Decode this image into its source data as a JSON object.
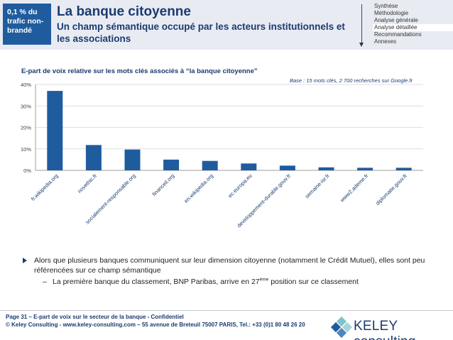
{
  "header": {
    "badge": "0,1 % du trafic non-brandé",
    "title": "La banque citoyenne",
    "subtitle": "Un champ sémantique occupé par les acteurs institutionnels et les associations"
  },
  "nav": {
    "items": [
      "Synthèse",
      "Méthodologie",
      "Analyse générale",
      "Analyse détaillée",
      "Recommandations",
      "Annexes"
    ],
    "active_index": 3
  },
  "chart_data": {
    "type": "bar",
    "title": "E-part de voix relative sur les mots clés associés à “la banque citoyenne”",
    "note": "Base : 15 mots clés, 2 700 recherches sur Google.fr",
    "categories": [
      "fr.wikipedia.org",
      "novethic.fr",
      "socialement-responsable.org",
      "financeil.org",
      "en.wikipedia.org",
      "ec.europa.eu",
      "developpement-durable.gouv.fr",
      "semaine-isr.fr",
      "www2.ademe.fr",
      "diplomatie.gouv.fr"
    ],
    "values": [
      37,
      11.8,
      9.7,
      5,
      4.4,
      3.2,
      2.2,
      1.4,
      1.2,
      1.2
    ],
    "yticks": [
      "0%",
      "10%",
      "20%",
      "30%",
      "40%"
    ],
    "ylim": [
      0,
      40
    ],
    "bar_color": "#1f5c9e",
    "grid": true
  },
  "bullets": {
    "main": "Alors que plusieurs banques communiquent sur leur dimension citoyenne (notamment le Crédit Mutuel), elles sont peu référencées sur ce champ sémantique",
    "dash": "–",
    "sub_before": "La première banque du classement, BNP Paribas, arrive en 27",
    "sub_sup": "ème",
    "sub_after": " position sur ce classement"
  },
  "footer": {
    "line1": "Page 31 – E-part de voix sur le secteur de la banque - Confidentiel",
    "line2": "© Keley Consulting - www.keley-consulting.com – 55 avenue de Breteuil 75007 PARIS, Tel.: +33 (0)1 80 48 26 20"
  },
  "logo": {
    "text": "KELEY consulting",
    "colors": [
      "#7ec3c9",
      "#1f5c9e",
      "#a6d3d8",
      "#4c86bf"
    ]
  }
}
